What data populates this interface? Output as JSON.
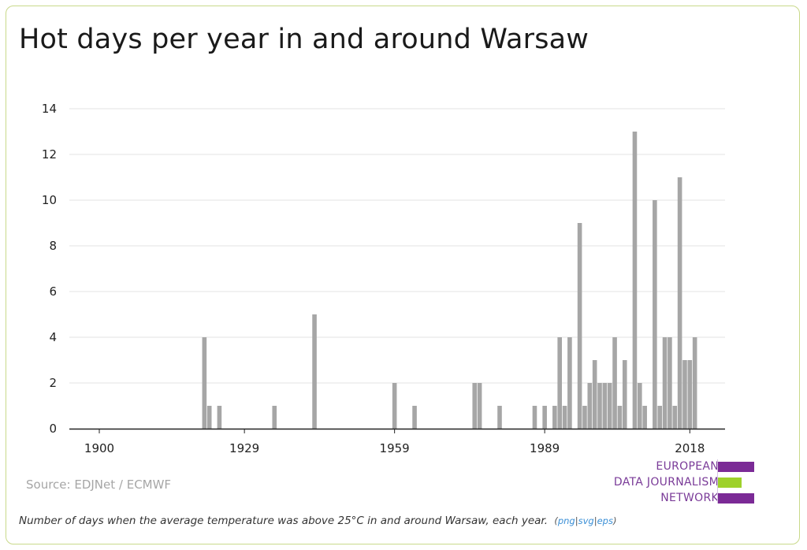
{
  "title": "Hot days per year in and around Warsaw",
  "source": "Source: EDJNet / ECMWF",
  "caption": "Number of days when the average temperature was above 25°C in and around Warsaw, each year.",
  "export_links": {
    "open": "(",
    "png": "png",
    "sep1": "|",
    "svg": "svg",
    "sep2": "|",
    "eps": "eps",
    "close": ")"
  },
  "logo": {
    "line1": "EUROPEAN",
    "line2": "DATA JOURNALISM",
    "line3": "NETWORK",
    "colors": {
      "purple": "#7b2a96",
      "green": "#9ed12b"
    }
  },
  "colors": {
    "bar": "#a6a6a6",
    "grid": "#e3e3e3",
    "axis": "#222222"
  },
  "chart_data": {
    "type": "bar",
    "title": "Hot days per year in and around Warsaw",
    "xlabel": "",
    "ylabel": "",
    "ylim": [
      0,
      14
    ],
    "yticks": [
      0,
      2,
      4,
      6,
      8,
      10,
      12,
      14
    ],
    "xticks": [
      1900,
      1929,
      1959,
      1989,
      2018
    ],
    "x_range": [
      1900,
      2018
    ],
    "grid": true,
    "x": [
      1921,
      1922,
      1924,
      1935,
      1943,
      1959,
      1963,
      1975,
      1976,
      1980,
      1987,
      1989,
      1991,
      1992,
      1993,
      1994,
      1996,
      1997,
      1998,
      1999,
      2000,
      2001,
      2002,
      2003,
      2004,
      2005,
      2007,
      2008,
      2009,
      2011,
      2012,
      2013,
      2014,
      2015,
      2016,
      2017,
      2018,
      2019,
      2020,
      2021
    ],
    "values": [
      4,
      1,
      1,
      1,
      5,
      2,
      1,
      2,
      2,
      1,
      1,
      1,
      1,
      4,
      1,
      4,
      9,
      1,
      2,
      3,
      2,
      2,
      2,
      4,
      1,
      3,
      13,
      2,
      1,
      10,
      1,
      4,
      4,
      1,
      11,
      3,
      3,
      4,
      0,
      0
    ]
  }
}
